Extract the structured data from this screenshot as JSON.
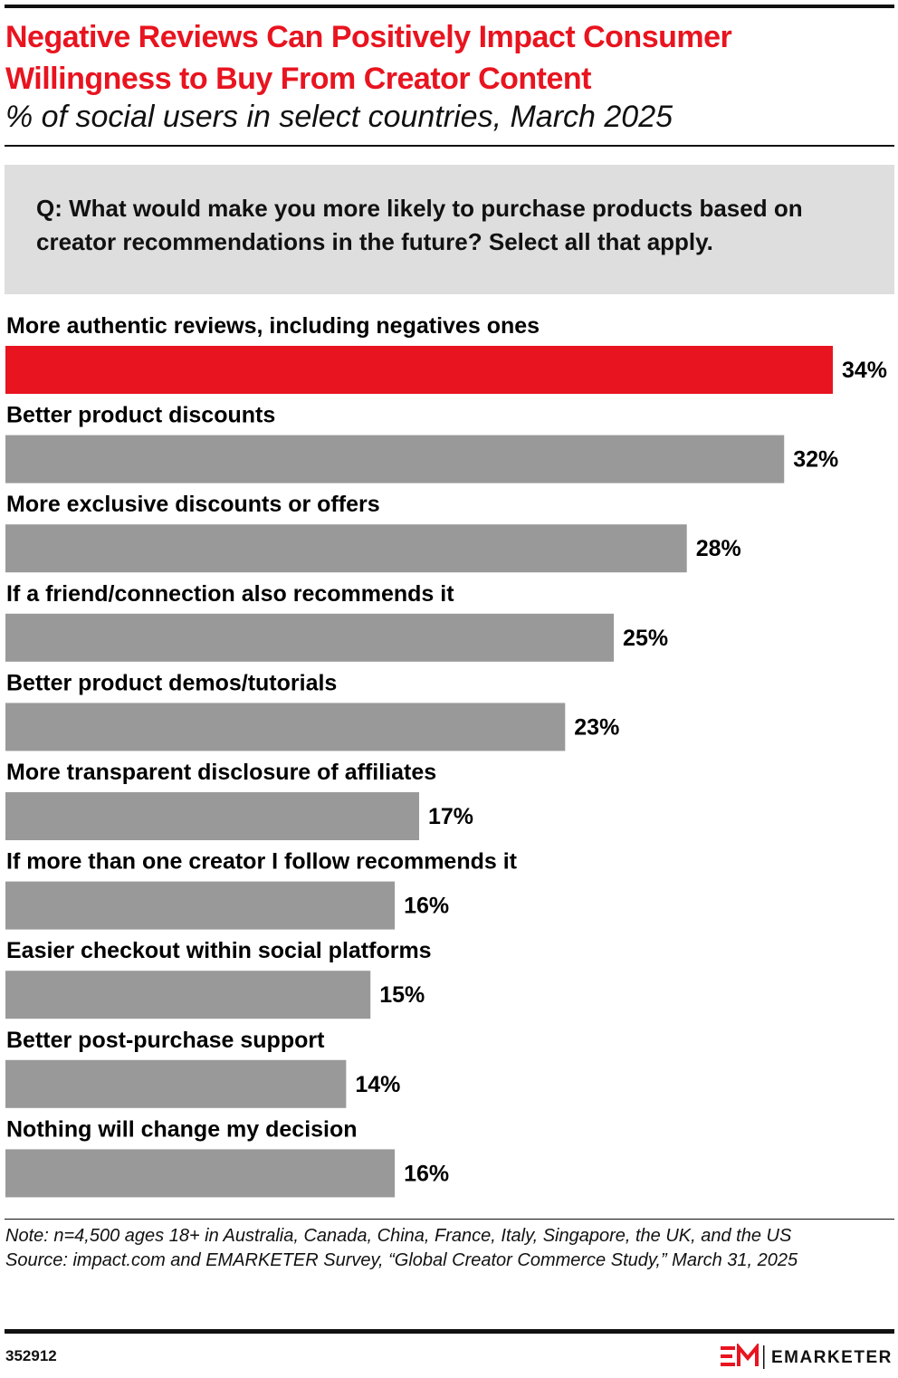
{
  "chart_data": {
    "type": "bar",
    "title": "Negative Reviews Can Positively Impact Consumer Willingness to Buy From Creator Content",
    "subtitle": "% of social users in select countries, March 2025",
    "question": "Q: What would make you more likely to purchase products based on creator recommendations in the future? Select all that apply.",
    "categories": [
      "More authentic reviews, including negatives ones",
      "Better product discounts",
      "More exclusive discounts or offers",
      "If a friend/connection also recommends it",
      "Better product demos/tutorials",
      "More transparent disclosure of affiliates",
      "If more than one creator I follow recommends it",
      "Easier checkout within social platforms",
      "Better post-purchase support",
      "Nothing will change my decision"
    ],
    "values": [
      34,
      32,
      28,
      25,
      23,
      17,
      16,
      15,
      14,
      16
    ],
    "value_labels": [
      "34%",
      "32%",
      "28%",
      "25%",
      "23%",
      "17%",
      "16%",
      "15%",
      "14%",
      "16%"
    ],
    "colors": [
      "#e8141f",
      "#999999",
      "#999999",
      "#999999",
      "#999999",
      "#999999",
      "#999999",
      "#999999",
      "#999999",
      "#999999"
    ],
    "note": "Note: n=4,500 ages 18+ in Australia, Canada, China, France, Italy, Singapore, the UK, and the US",
    "source": "Source: impact.com and EMARKETER Survey, “Global Creator Commerce Study,” March 31, 2025",
    "chart_id": "352912",
    "brand": "EMARKETER"
  }
}
